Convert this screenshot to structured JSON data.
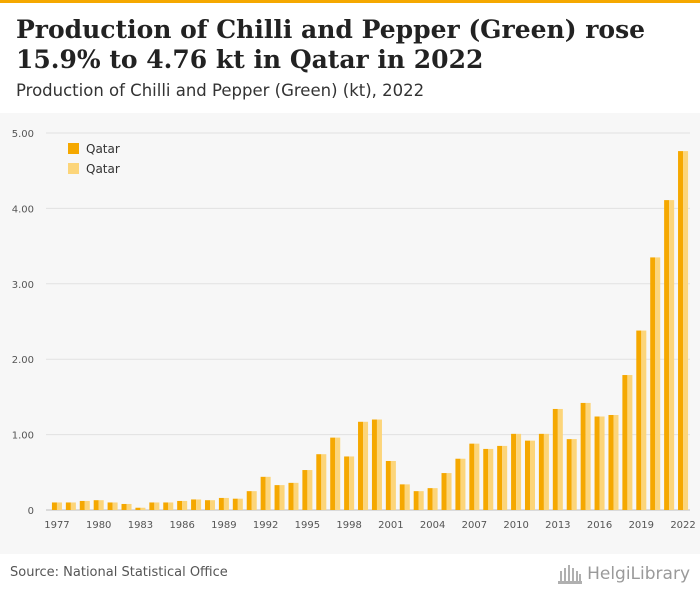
{
  "header": {
    "title": "Production of Chilli and Pepper (Green) rose 15.9% to 4.76 kt in Qatar in 2022",
    "subtitle": "Production of Chilli and Pepper (Green) (kt), 2022"
  },
  "footer": {
    "source": "Source: National Statistical Office",
    "logo_text": "HelgiLibrary"
  },
  "colors": {
    "accent": "#f5a800",
    "series1": "#f5a800",
    "series2": "#fcd57a"
  },
  "chart_data": {
    "type": "bar",
    "x": [
      1977,
      1978,
      1979,
      1980,
      1981,
      1982,
      1983,
      1984,
      1985,
      1986,
      1987,
      1988,
      1989,
      1990,
      1991,
      1992,
      1993,
      1994,
      1995,
      1996,
      1997,
      1998,
      1999,
      2000,
      2001,
      2002,
      2003,
      2004,
      2005,
      2006,
      2007,
      2008,
      2009,
      2010,
      2011,
      2012,
      2013,
      2014,
      2015,
      2016,
      2017,
      2018,
      2019,
      2020,
      2021,
      2022
    ],
    "x_tick_labels": [
      "1977",
      "1980",
      "1983",
      "1986",
      "1989",
      "1992",
      "1995",
      "1998",
      "2001",
      "2004",
      "2007",
      "2010",
      "2013",
      "2016",
      "2019",
      "2022"
    ],
    "series": [
      {
        "name": "Qatar",
        "color": "#f5a800",
        "values": [
          0.1,
          0.1,
          0.12,
          0.13,
          0.1,
          0.08,
          0.03,
          0.1,
          0.1,
          0.12,
          0.14,
          0.13,
          0.16,
          0.15,
          0.25,
          0.44,
          0.33,
          0.36,
          0.53,
          0.74,
          0.96,
          0.71,
          1.17,
          1.2,
          0.65,
          0.34,
          0.25,
          0.29,
          0.49,
          0.68,
          0.88,
          0.81,
          0.85,
          1.01,
          0.92,
          1.01,
          1.34,
          0.94,
          1.42,
          1.24,
          1.26,
          1.79,
          2.38,
          3.35,
          4.11,
          4.76
        ]
      },
      {
        "name": "Qatar",
        "color": "#fcd57a",
        "values": [
          0.1,
          0.1,
          0.12,
          0.13,
          0.1,
          0.08,
          0.03,
          0.1,
          0.1,
          0.12,
          0.14,
          0.13,
          0.16,
          0.15,
          0.25,
          0.44,
          0.33,
          0.36,
          0.53,
          0.74,
          0.96,
          0.71,
          1.17,
          1.2,
          0.65,
          0.34,
          0.25,
          0.29,
          0.49,
          0.68,
          0.88,
          0.81,
          0.85,
          1.01,
          0.92,
          1.01,
          1.34,
          0.94,
          1.42,
          1.24,
          1.26,
          1.79,
          2.38,
          3.35,
          4.11,
          4.76
        ]
      }
    ],
    "y_ticks": [
      "0",
      "1.00",
      "2.00",
      "3.00",
      "4.00",
      "5.00"
    ],
    "ylim": [
      0,
      5
    ],
    "grid": true,
    "legend_position": "top-left"
  }
}
